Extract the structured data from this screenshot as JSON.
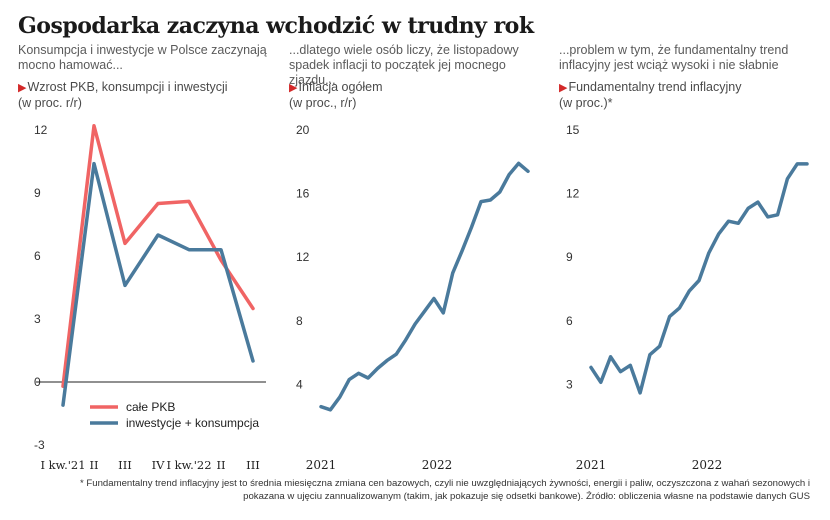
{
  "title": "Gospodarka zaczyna wchodzić w trudny rok",
  "footnote": "* Fundamentalny trend inflacyjny jest to średnia miesięczna zmiana cen bazowych, czyli nie uwzględniających żywności, energii i paliw, oczyszczona z wahań sezonowych i pokazana w ujęciu zannualizowanym (takim, jak pokazuje się odsetki bankowe). Źródło: obliczenia własne na podstawie danych GUS",
  "colors": {
    "red": "#f06464",
    "blue": "#4a7a9c",
    "axis": "#222222",
    "marker": "#d32a2a"
  },
  "chart_data": [
    {
      "type": "line",
      "description": "Konsumpcja i inwestycje w Polsce zaczynają mocno hamować...",
      "title": "Wzrost PKB, konsumpcji i inwestycji",
      "unit": "(w proc. r/r)",
      "categories": [
        "I kw.'21",
        "II",
        "III",
        "IV",
        "I kw.'22",
        "II",
        "III"
      ],
      "ylim": [
        -3,
        12
      ],
      "yticks": [
        12,
        9,
        6,
        3,
        0,
        -3
      ],
      "legend_position": "bottom-left",
      "series": [
        {
          "name": "całe PKB",
          "color": "#f06464",
          "values": [
            -0.2,
            12.2,
            6.6,
            8.5,
            8.6,
            5.8,
            3.5
          ]
        },
        {
          "name": "inwestycje + konsumpcja",
          "color": "#4a7a9c",
          "values": [
            -1.1,
            10.4,
            4.6,
            7.0,
            6.3,
            6.3,
            1.0
          ]
        }
      ]
    },
    {
      "type": "line",
      "description": "...dlatego wiele osób liczy, że listopadowy spadek inflacji to początek jej mocnego zjazdu...",
      "title": "Inflacja ogółem",
      "unit": "(w proc., r/r)",
      "xticks": [
        "2021",
        "2022"
      ],
      "ylim": [
        0,
        20
      ],
      "yticks": [
        20,
        16,
        12,
        8,
        4
      ],
      "series": [
        {
          "color": "#4a7a9c",
          "x": [
            "2021-01",
            "2021-02",
            "2021-03",
            "2021-04",
            "2021-05",
            "2021-06",
            "2021-07",
            "2021-08",
            "2021-09",
            "2021-10",
            "2021-11",
            "2021-12",
            "2022-01",
            "2022-02",
            "2022-03",
            "2022-04",
            "2022-05",
            "2022-06",
            "2022-07",
            "2022-08",
            "2022-09",
            "2022-10",
            "2022-11"
          ],
          "values": [
            2.6,
            2.4,
            3.2,
            4.3,
            4.7,
            4.4,
            5.0,
            5.5,
            5.9,
            6.8,
            7.8,
            8.6,
            9.4,
            8.5,
            11.0,
            12.4,
            13.9,
            15.5,
            15.6,
            16.1,
            17.2,
            17.9,
            17.4
          ]
        }
      ]
    },
    {
      "type": "line",
      "description": "...problem w tym, że fundamentalny trend inflacyjny jest wciąż wysoki i nie słabnie",
      "title": "Fundamentalny trend inflacyjny",
      "unit": "(w proc.)*",
      "xticks": [
        "2021",
        "2022"
      ],
      "ylim": [
        0,
        15
      ],
      "yticks": [
        15,
        12,
        9,
        6,
        3
      ],
      "series": [
        {
          "color": "#4a7a9c",
          "x": [
            "2021-01",
            "2021-02",
            "2021-03",
            "2021-04",
            "2021-05",
            "2021-06",
            "2021-07",
            "2021-08",
            "2021-09",
            "2021-10",
            "2021-11",
            "2021-12",
            "2022-01",
            "2022-02",
            "2022-03",
            "2022-04",
            "2022-05",
            "2022-06",
            "2022-07",
            "2022-08",
            "2022-09",
            "2022-10",
            "2022-11"
          ],
          "values": [
            3.8,
            3.1,
            4.3,
            3.6,
            3.9,
            2.6,
            4.4,
            4.8,
            6.2,
            6.6,
            7.4,
            7.9,
            9.2,
            10.1,
            10.7,
            10.6,
            11.3,
            11.6,
            10.9,
            11.0,
            12.7,
            13.4,
            13.4
          ]
        }
      ]
    }
  ]
}
